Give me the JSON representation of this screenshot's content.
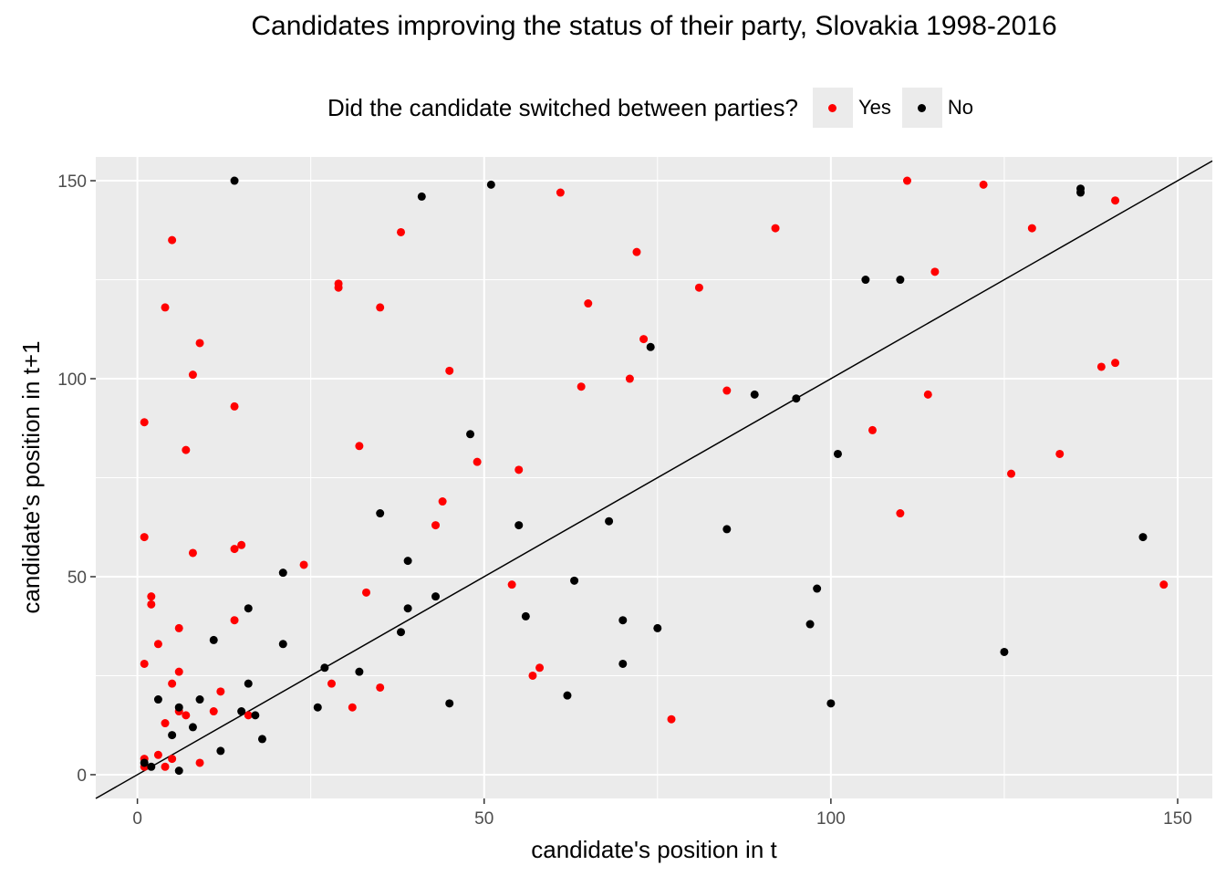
{
  "chart_data": {
    "type": "scatter",
    "title": "Candidates improving the status of their party, Slovakia 1998-2016",
    "xlabel": "candidate's position in t",
    "ylabel": "candidate's position in t+1",
    "xlim": [
      -6,
      155
    ],
    "ylim": [
      -6,
      156
    ],
    "x_ticks": [
      0,
      50,
      100,
      150
    ],
    "y_ticks": [
      0,
      50,
      100,
      150
    ],
    "grid": true,
    "reference_line": "y = x",
    "legend": {
      "title": "Did the candidate switched between parties?",
      "position": "top",
      "entries": [
        "Yes",
        "No"
      ]
    },
    "series": [
      {
        "name": "Yes",
        "color": "#ff0000",
        "points": [
          [
            1,
            89
          ],
          [
            1,
            60
          ],
          [
            1,
            28
          ],
          [
            1,
            4
          ],
          [
            1,
            2
          ],
          [
            2,
            45
          ],
          [
            2,
            43
          ],
          [
            3,
            33
          ],
          [
            3,
            5
          ],
          [
            4,
            118
          ],
          [
            4,
            13
          ],
          [
            4,
            2
          ],
          [
            5,
            135
          ],
          [
            5,
            23
          ],
          [
            5,
            4
          ],
          [
            6,
            37
          ],
          [
            6,
            26
          ],
          [
            6,
            16
          ],
          [
            7,
            82
          ],
          [
            7,
            15
          ],
          [
            8,
            101
          ],
          [
            8,
            56
          ],
          [
            9,
            109
          ],
          [
            9,
            3
          ],
          [
            11,
            16
          ],
          [
            12,
            21
          ],
          [
            14,
            93
          ],
          [
            14,
            57
          ],
          [
            14,
            39
          ],
          [
            15,
            58
          ],
          [
            16,
            15
          ],
          [
            24,
            53
          ],
          [
            28,
            23
          ],
          [
            29,
            124
          ],
          [
            29,
            123
          ],
          [
            31,
            17
          ],
          [
            32,
            83
          ],
          [
            33,
            46
          ],
          [
            35,
            118
          ],
          [
            35,
            22
          ],
          [
            38,
            137
          ],
          [
            43,
            63
          ],
          [
            44,
            69
          ],
          [
            45,
            102
          ],
          [
            49,
            79
          ],
          [
            54,
            48
          ],
          [
            55,
            77
          ],
          [
            57,
            25
          ],
          [
            58,
            27
          ],
          [
            61,
            147
          ],
          [
            64,
            98
          ],
          [
            65,
            119
          ],
          [
            71,
            100
          ],
          [
            72,
            132
          ],
          [
            73,
            110
          ],
          [
            77,
            14
          ],
          [
            81,
            123
          ],
          [
            85,
            97
          ],
          [
            92,
            138
          ],
          [
            106,
            87
          ],
          [
            110,
            66
          ],
          [
            111,
            150
          ],
          [
            114,
            96
          ],
          [
            115,
            127
          ],
          [
            122,
            149
          ],
          [
            126,
            76
          ],
          [
            129,
            138
          ],
          [
            133,
            81
          ],
          [
            139,
            103
          ],
          [
            141,
            104
          ],
          [
            141,
            145
          ],
          [
            148,
            48
          ]
        ]
      },
      {
        "name": "No",
        "color": "#000000",
        "points": [
          [
            1,
            3
          ],
          [
            2,
            2
          ],
          [
            3,
            19
          ],
          [
            5,
            10
          ],
          [
            6,
            17
          ],
          [
            6,
            1
          ],
          [
            8,
            12
          ],
          [
            9,
            19
          ],
          [
            11,
            34
          ],
          [
            12,
            6
          ],
          [
            14,
            150
          ],
          [
            15,
            16
          ],
          [
            16,
            42
          ],
          [
            16,
            23
          ],
          [
            17,
            15
          ],
          [
            18,
            9
          ],
          [
            21,
            51
          ],
          [
            21,
            33
          ],
          [
            26,
            17
          ],
          [
            27,
            27
          ],
          [
            32,
            26
          ],
          [
            35,
            66
          ],
          [
            38,
            36
          ],
          [
            39,
            54
          ],
          [
            39,
            42
          ],
          [
            41,
            146
          ],
          [
            43,
            45
          ],
          [
            45,
            18
          ],
          [
            48,
            86
          ],
          [
            51,
            149
          ],
          [
            55,
            63
          ],
          [
            56,
            40
          ],
          [
            62,
            20
          ],
          [
            63,
            49
          ],
          [
            68,
            64
          ],
          [
            70,
            39
          ],
          [
            70,
            28
          ],
          [
            74,
            108
          ],
          [
            75,
            37
          ],
          [
            85,
            62
          ],
          [
            89,
            96
          ],
          [
            95,
            95
          ],
          [
            97,
            38
          ],
          [
            98,
            47
          ],
          [
            100,
            18
          ],
          [
            101,
            81
          ],
          [
            105,
            125
          ],
          [
            110,
            125
          ],
          [
            125,
            31
          ],
          [
            136,
            148
          ],
          [
            136,
            147
          ],
          [
            145,
            60
          ]
        ]
      }
    ]
  }
}
